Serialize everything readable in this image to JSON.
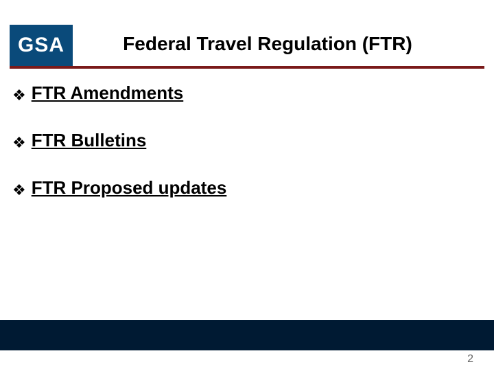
{
  "logo": {
    "text": "GSA",
    "bg_color": "#0a4a7a",
    "text_color": "#ffffff"
  },
  "title": "Federal Travel Regulation (FTR)",
  "rule_color": "#7a1a1a",
  "bullets": [
    {
      "label": "FTR Amendments"
    },
    {
      "label": " FTR Bulletins"
    },
    {
      "label": " FTR Proposed updates"
    }
  ],
  "bullet_glyph": "❖",
  "footer_bar_color": "#001a33",
  "page_number": "2"
}
